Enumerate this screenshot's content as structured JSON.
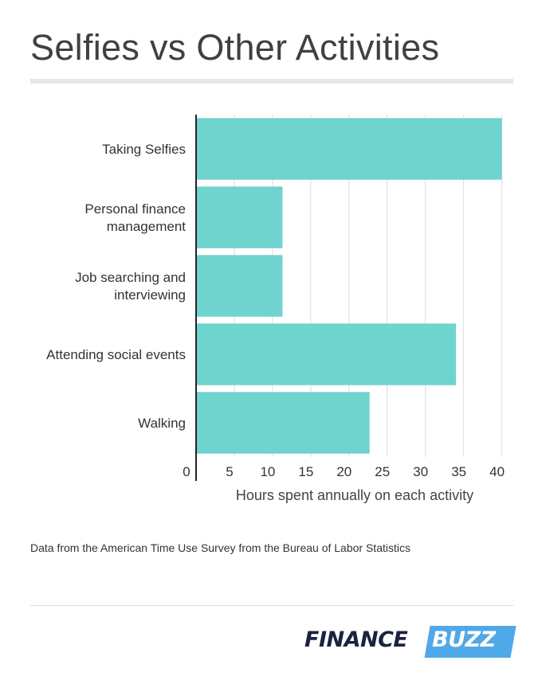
{
  "title": "Selfies vs Other Activities",
  "source_note": "Data from the American Time Use Survey from the Bureau of Labor Statistics",
  "brand": {
    "part1": "FINANCE",
    "part2": "BUZZ",
    "color_dark": "#1c2340",
    "color_accent": "#4fa8e8"
  },
  "chart_data": {
    "type": "bar",
    "orientation": "horizontal",
    "categories": [
      [
        "Taking Selfies"
      ],
      [
        "Personal finance",
        "management"
      ],
      [
        "Job searching and",
        "interviewing"
      ],
      [
        "Attending social events"
      ],
      [
        "Walking"
      ]
    ],
    "values": [
      40,
      11.3,
      11.3,
      34,
      22.7
    ],
    "xlabel": "Hours spent annually on each activity",
    "xlim": [
      0,
      41.5
    ],
    "xticks": [
      0,
      5,
      10,
      15,
      20,
      25,
      30,
      35,
      40
    ],
    "grid": true,
    "bar_color": "#6fd3ce"
  }
}
